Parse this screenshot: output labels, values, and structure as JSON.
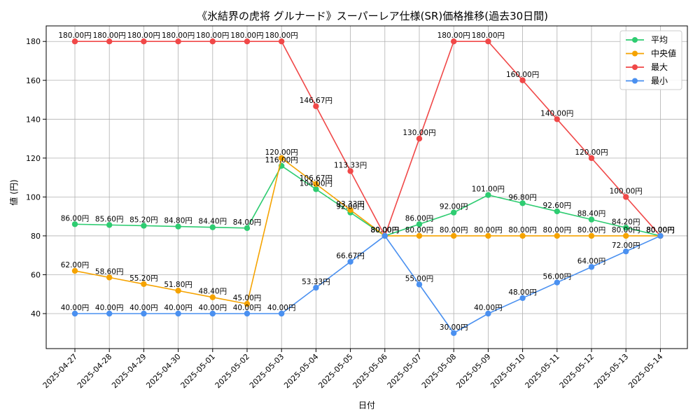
{
  "chart_data": {
    "type": "line",
    "title": "《氷結界の虎将 グルナード》スーパーレア仕様(SR)価格推移(過去30日間)",
    "xlabel": "日付",
    "ylabel": "値 (円)",
    "ylim": [
      22,
      188
    ],
    "yticks": [
      40,
      60,
      80,
      100,
      120,
      140,
      160,
      180
    ],
    "grid": true,
    "legend_position": "top-right",
    "value_suffix": "円",
    "categories": [
      "2025-04-27",
      "2025-04-28",
      "2025-04-29",
      "2025-04-30",
      "2025-05-01",
      "2025-05-02",
      "2025-05-03",
      "2025-05-04",
      "2025-05-05",
      "2025-05-06",
      "2025-05-07",
      "2025-05-08",
      "2025-05-09",
      "2025-05-10",
      "2025-05-11",
      "2025-05-12",
      "2025-05-13",
      "2025-05-14"
    ],
    "series": [
      {
        "name": "平均",
        "color": "#2ecc71",
        "values": [
          86.0,
          85.6,
          85.2,
          84.8,
          84.4,
          84.0,
          116.0,
          104.0,
          92.0,
          80.0,
          86.0,
          92.0,
          101.0,
          96.8,
          92.6,
          88.4,
          84.2,
          80.0
        ]
      },
      {
        "name": "中央値",
        "color": "#f5a300",
        "values": [
          62.0,
          58.6,
          55.2,
          51.8,
          48.4,
          45.0,
          120.0,
          106.67,
          93.33,
          80.0,
          80.0,
          80.0,
          80.0,
          80.0,
          80.0,
          80.0,
          80.0,
          80.0
        ]
      },
      {
        "name": "最大",
        "color": "#f04848",
        "values": [
          180.0,
          180.0,
          180.0,
          180.0,
          180.0,
          180.0,
          180.0,
          146.67,
          113.33,
          80.0,
          130.0,
          180.0,
          180.0,
          160.0,
          140.0,
          120.0,
          100.0,
          80.0
        ]
      },
      {
        "name": "最小",
        "color": "#4a90f0",
        "values": [
          40.0,
          40.0,
          40.0,
          40.0,
          40.0,
          40.0,
          40.0,
          53.33,
          66.67,
          80.0,
          55.0,
          30.0,
          40.0,
          48.0,
          56.0,
          64.0,
          72.0,
          80.0
        ]
      }
    ]
  }
}
